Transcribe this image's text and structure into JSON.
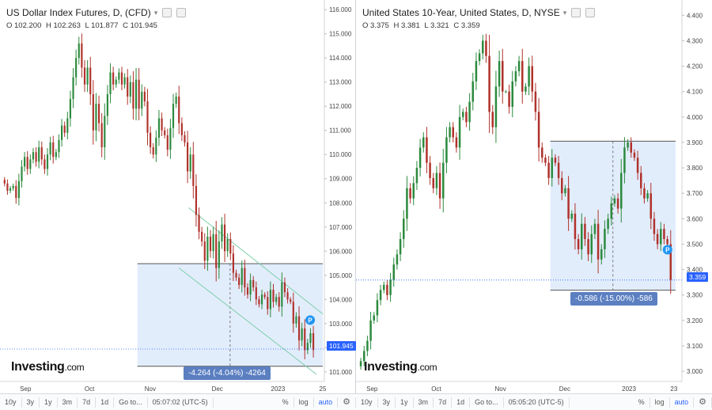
{
  "colors": {
    "up": "#2c8a3e",
    "down": "#b0322b",
    "box": "#dbe9fb",
    "boxLine": "#555",
    "channel": "#7ccfa8",
    "price": "#2962ff",
    "callout": "#5b7fc1"
  },
  "left": {
    "title": "US Dollar Index Futures, D, (CFD)",
    "ohlc": {
      "o": "O 102.200",
      "h": "H 102.263",
      "l": "L 101.877",
      "c": "C 101.945"
    },
    "logo": "Investing",
    "logo_suffix": ".com",
    "price_label": "101.945",
    "measure_label": "-4.264 (-4.04%) -4264",
    "timeframes": [
      "10y",
      "3y",
      "1y",
      "3m",
      "7d",
      "1d",
      "Go to..."
    ],
    "clock": "05:07:02 (UTC-5)",
    "toggles": [
      "%",
      "log",
      "auto"
    ]
  },
  "right": {
    "title": "United States 10-Year, United States, D, NYSE",
    "ohlc": {
      "o": "O 3.375",
      "h": "H 3.381",
      "l": "L 3.321",
      "c": "C 3.359"
    },
    "logo": "Investing",
    "logo_suffix": ".com",
    "price_label": "3.359",
    "measure_label": "-0.586 (-15.00%) -586",
    "timeframes": [
      "10y",
      "3y",
      "1y",
      "3m",
      "7d",
      "1d",
      "Go to..."
    ],
    "clock": "05:05:20 (UTC-5)",
    "toggles": [
      "%",
      "log",
      "auto"
    ]
  },
  "chart_data": [
    {
      "type": "candlestick",
      "title": "US Dollar Index Futures, D, (CFD)",
      "y_ticks": [
        "116.000",
        "115.000",
        "114.000",
        "113.000",
        "112.000",
        "111.000",
        "110.000",
        "109.000",
        "108.000",
        "107.000",
        "106.000",
        "105.000",
        "104.000",
        "103.000",
        "102.000",
        "101.000"
      ],
      "ylim": [
        100.6,
        116.4
      ],
      "x_ticks": [
        "Sep",
        "Oct",
        "Nov",
        "Dec",
        "2023",
        "25"
      ],
      "x_tick_pos": [
        0.07,
        0.27,
        0.46,
        0.67,
        0.86,
        1.0
      ],
      "last_price": 101.945,
      "measure": {
        "from": 105.48,
        "to": 101.23,
        "x_from": 0.42,
        "x_to": 1.0,
        "label": "-4.264 (-4.04%) -4264"
      },
      "channel": {
        "upper": [
          [
            0.58,
            107.8
          ],
          [
            1.0,
            103.4
          ]
        ],
        "lower": [
          [
            0.55,
            105.3
          ],
          [
            0.98,
            100.9
          ]
        ]
      },
      "closes": [
        108.8,
        108.5,
        108.6,
        108.7,
        108.2,
        108.9,
        109.5,
        109.9,
        109.4,
        109.8,
        110.1,
        109.7,
        110.3,
        109.8,
        109.4,
        110.0,
        110.5,
        109.9,
        110.1,
        110.6,
        111.2,
        110.9,
        111.5,
        112.3,
        113.2,
        114.0,
        114.6,
        113.6,
        112.9,
        113.6,
        112.5,
        111.0,
        112.1,
        111.3,
        110.3,
        111.6,
        112.5,
        113.4,
        112.9,
        113.1,
        113.4,
        112.9,
        113.2,
        112.4,
        113.0,
        111.9,
        113.1,
        111.9,
        112.6,
        112.2,
        110.9,
        110.3,
        110.0,
        110.7,
        111.5,
        111.0,
        110.8,
        110.2,
        111.1,
        112.1,
        112.4,
        111.3,
        110.8,
        110.5,
        109.3,
        110.0,
        108.7,
        107.5,
        106.8,
        106.4,
        105.6,
        106.6,
        106.0,
        106.7,
        105.3,
        106.4,
        107.1,
        106.0,
        106.5,
        105.9,
        105.1,
        104.9,
        104.6,
        105.3,
        104.5,
        104.2,
        104.8,
        104.5,
        104.0,
        103.8,
        104.2,
        104.1,
        103.6,
        104.4,
        103.9,
        104.1,
        103.7,
        104.7,
        104.3,
        104.0,
        103.9,
        103.0,
        103.3,
        102.3,
        102.8,
        101.9,
        102.2,
        102.6,
        101.9
      ],
      "x_start": 0.0,
      "x_end": 0.975
    },
    {
      "type": "candlestick",
      "title": "United States 10-Year, United States, D, NYSE",
      "y_ticks": [
        "4.400",
        "4.300",
        "4.200",
        "4.100",
        "4.000",
        "3.900",
        "3.800",
        "3.700",
        "3.600",
        "3.500",
        "3.400",
        "3.300",
        "3.200",
        "3.100",
        "3.000"
      ],
      "ylim": [
        2.96,
        4.46
      ],
      "x_ticks": [
        "Sep",
        "Oct",
        "Nov",
        "Dec",
        "2023",
        "23"
      ],
      "x_tick_pos": [
        0.04,
        0.24,
        0.44,
        0.64,
        0.84,
        0.98
      ],
      "last_price": 3.359,
      "measure": {
        "from": 3.905,
        "to": 3.319,
        "x_from": 0.595,
        "x_to": 0.985,
        "label": "-0.586 (-15.00%) -586"
      },
      "closes": [
        3.04,
        3.08,
        3.12,
        3.2,
        3.22,
        3.28,
        3.32,
        3.34,
        3.3,
        3.36,
        3.42,
        3.46,
        3.52,
        3.6,
        3.72,
        3.68,
        3.74,
        3.8,
        3.88,
        3.92,
        3.82,
        3.76,
        3.72,
        3.78,
        3.68,
        3.82,
        3.92,
        3.96,
        3.92,
        3.88,
        4.0,
        4.02,
        3.98,
        4.06,
        4.14,
        4.22,
        4.25,
        4.3,
        4.24,
        4.02,
        3.96,
        4.12,
        4.22,
        4.1,
        4.1,
        4.04,
        4.14,
        4.18,
        4.22,
        4.1,
        4.12,
        4.2,
        4.1,
        4.02,
        3.88,
        3.84,
        3.82,
        3.76,
        3.84,
        3.82,
        3.76,
        3.7,
        3.72,
        3.6,
        3.62,
        3.52,
        3.48,
        3.58,
        3.52,
        3.46,
        3.54,
        3.58,
        3.44,
        3.48,
        3.56,
        3.6,
        3.66,
        3.68,
        3.64,
        3.78,
        3.88,
        3.9,
        3.86,
        3.84,
        3.78,
        3.72,
        3.68,
        3.7,
        3.6,
        3.54,
        3.5,
        3.56,
        3.52,
        3.5,
        3.36
      ],
      "x_start": 0.0,
      "x_end": 0.975
    }
  ]
}
